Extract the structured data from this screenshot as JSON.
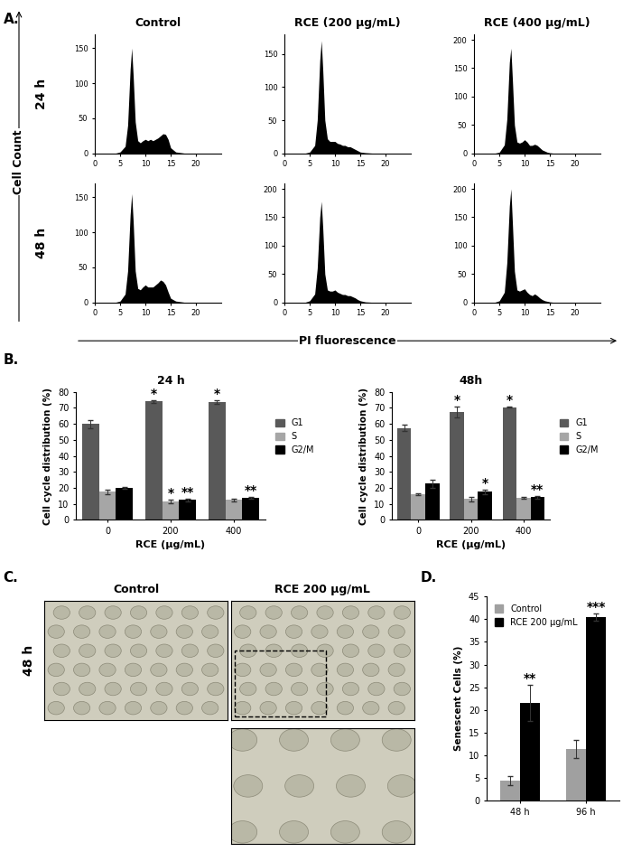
{
  "panel_labels": [
    "A.",
    "B.",
    "C.",
    "D."
  ],
  "figure_labels": {
    "y": "Cell Count",
    "x": "PI fluorescence"
  },
  "images": {
    "title_left": "Control",
    "title_right": "RCE 200 µg/mL",
    "row_label": "48 h"
  },
  "chart_data": [
    {
      "type": "area",
      "title": "Control",
      "row_label": "24 h",
      "color": "#000000",
      "x": [
        0,
        4,
        5,
        6,
        6.5,
        7,
        7.3,
        7.6,
        8,
        8.5,
        9,
        9.5,
        10,
        10.5,
        11,
        11.5,
        12,
        12.5,
        13,
        13.5,
        14,
        14.5,
        15,
        16,
        18,
        20,
        25
      ],
      "values": [
        0,
        0,
        2,
        10,
        40,
        120,
        150,
        110,
        45,
        18,
        15,
        18,
        20,
        18,
        20,
        18,
        20,
        22,
        25,
        28,
        27,
        20,
        8,
        2,
        0,
        0,
        0
      ],
      "xlim": [
        0,
        25
      ],
      "xticks": [
        0,
        5,
        10,
        15,
        20
      ],
      "ylim": [
        0,
        170
      ],
      "yticks": [
        0,
        50,
        100,
        150
      ]
    },
    {
      "type": "area",
      "title": "RCE (200 µg/mL)",
      "color": "#000000",
      "x": [
        0,
        4,
        5,
        6,
        6.5,
        7,
        7.3,
        7.6,
        8,
        8.5,
        9,
        9.5,
        10,
        10.5,
        11,
        11.5,
        12,
        12.5,
        13,
        13.5,
        14,
        14.5,
        15,
        16,
        18,
        20,
        25
      ],
      "values": [
        0,
        0,
        2,
        12,
        50,
        140,
        170,
        125,
        50,
        22,
        18,
        18,
        18,
        15,
        14,
        12,
        12,
        10,
        10,
        8,
        6,
        4,
        2,
        1,
        0,
        0,
        0
      ],
      "xlim": [
        0,
        25
      ],
      "xticks": [
        0,
        5,
        10,
        15,
        20
      ],
      "ylim": [
        0,
        180
      ],
      "yticks": [
        0,
        50,
        100,
        150
      ]
    },
    {
      "type": "area",
      "title": "RCE (400 µg/mL)",
      "color": "#000000",
      "x": [
        0,
        4,
        5,
        6,
        6.5,
        7,
        7.3,
        7.6,
        8,
        8.5,
        9,
        9.5,
        10,
        10.5,
        11,
        11.5,
        12,
        12.5,
        13,
        13.5,
        14,
        14.5,
        15,
        16,
        18,
        20,
        25
      ],
      "values": [
        0,
        0,
        2,
        15,
        60,
        160,
        185,
        130,
        50,
        20,
        18,
        20,
        24,
        20,
        14,
        14,
        16,
        14,
        10,
        6,
        4,
        2,
        1,
        0,
        0,
        0,
        0
      ],
      "xlim": [
        0,
        25
      ],
      "xticks": [
        0,
        5,
        10,
        15,
        20
      ],
      "ylim": [
        0,
        210
      ],
      "yticks": [
        0,
        50,
        100,
        150,
        200
      ]
    },
    {
      "type": "area",
      "row_label": "48 h",
      "color": "#000000",
      "x": [
        0,
        4,
        5,
        6,
        6.5,
        7,
        7.3,
        7.6,
        8,
        8.5,
        9,
        9.5,
        10,
        10.5,
        11,
        11.5,
        12,
        12.5,
        13,
        13.5,
        14,
        14.5,
        15,
        16,
        18,
        20,
        25
      ],
      "values": [
        0,
        0,
        2,
        12,
        45,
        125,
        155,
        115,
        45,
        20,
        18,
        22,
        25,
        22,
        22,
        22,
        25,
        28,
        32,
        30,
        25,
        15,
        6,
        2,
        0,
        0,
        0
      ],
      "xlim": [
        0,
        25
      ],
      "xticks": [
        0,
        5,
        10,
        15,
        20
      ],
      "ylim": [
        0,
        170
      ],
      "yticks": [
        0,
        50,
        100,
        150
      ]
    },
    {
      "type": "area",
      "color": "#000000",
      "x": [
        0,
        4,
        5,
        6,
        6.5,
        7,
        7.3,
        7.6,
        8,
        8.5,
        9,
        9.5,
        10,
        10.5,
        11,
        11.5,
        12,
        12.5,
        13,
        13.5,
        14,
        14.5,
        15,
        16,
        18,
        20,
        25
      ],
      "values": [
        0,
        0,
        3,
        15,
        60,
        150,
        178,
        130,
        50,
        22,
        20,
        20,
        22,
        18,
        16,
        14,
        14,
        12,
        12,
        10,
        8,
        5,
        3,
        1,
        0,
        0,
        0
      ],
      "xlim": [
        0,
        25
      ],
      "xticks": [
        0,
        5,
        10,
        15,
        20
      ],
      "ylim": [
        0,
        210
      ],
      "yticks": [
        0,
        50,
        100,
        150,
        200
      ]
    },
    {
      "type": "area",
      "color": "#000000",
      "x": [
        0,
        4,
        5,
        6,
        6.5,
        7,
        7.3,
        7.6,
        8,
        8.5,
        9,
        9.5,
        10,
        10.5,
        11,
        11.5,
        12,
        12.5,
        13,
        13.5,
        14,
        14.5,
        15,
        16,
        18,
        20,
        25
      ],
      "values": [
        0,
        0,
        3,
        18,
        70,
        170,
        200,
        140,
        55,
        22,
        20,
        22,
        24,
        18,
        14,
        12,
        15,
        12,
        8,
        5,
        3,
        2,
        1,
        0,
        0,
        0,
        0
      ],
      "xlim": [
        0,
        25
      ],
      "xticks": [
        0,
        5,
        10,
        15,
        20
      ],
      "ylim": [
        0,
        210
      ],
      "yticks": [
        0,
        50,
        100,
        150,
        200
      ]
    },
    {
      "type": "bar",
      "title": "24 h",
      "categories": [
        "0",
        "200",
        "400"
      ],
      "x_label": "RCE (µg/mL)",
      "y_label": "Cell cycle distribution (%)",
      "ylim": [
        0,
        80
      ],
      "yticks": [
        0,
        10,
        20,
        30,
        40,
        50,
        60,
        70,
        80
      ],
      "legend": "right",
      "series": [
        {
          "name": "G1",
          "color": "#595959",
          "values": [
            60,
            74,
            73.5
          ],
          "errors": [
            2.5,
            1.0,
            1.2
          ],
          "annotations": [
            null,
            "*",
            "*"
          ]
        },
        {
          "name": "S",
          "color": "#a6a6a6",
          "values": [
            17.5,
            11.5,
            12.5
          ],
          "errors": [
            1.5,
            1.0,
            0.8
          ],
          "annotations": [
            null,
            "*",
            null
          ]
        },
        {
          "name": "G2/M",
          "color": "#000000",
          "values": [
            20,
            12.5,
            13.5
          ],
          "errors": [
            0.5,
            0.8,
            0.5
          ],
          "annotations": [
            null,
            "**",
            "**"
          ]
        }
      ]
    },
    {
      "type": "bar",
      "title": "48h",
      "categories": [
        "0",
        "200",
        "400"
      ],
      "x_label": "RCE (µg/mL)",
      "y_label": "Cell cycle distribution (%)",
      "ylim": [
        0,
        80
      ],
      "yticks": [
        0,
        10,
        20,
        30,
        40,
        50,
        60,
        70,
        80
      ],
      "legend": "right",
      "series": [
        {
          "name": "G1",
          "color": "#595959",
          "values": [
            57.5,
            67.5,
            70.5
          ],
          "errors": [
            2.0,
            3.5,
            0.5
          ],
          "annotations": [
            null,
            "*",
            "*"
          ]
        },
        {
          "name": "S",
          "color": "#a6a6a6",
          "values": [
            16,
            13,
            13.5
          ],
          "errors": [
            0.5,
            1.5,
            0.5
          ],
          "annotations": [
            null,
            null,
            null
          ]
        },
        {
          "name": "G2/M",
          "color": "#000000",
          "values": [
            22.5,
            17.5,
            14
          ],
          "errors": [
            2.5,
            1.5,
            1.0
          ],
          "annotations": [
            null,
            "*",
            "**"
          ]
        }
      ]
    },
    {
      "type": "bar",
      "categories": [
        "48 h",
        "96 h"
      ],
      "y_label": "Senescent Cells (%)",
      "ylim": [
        0,
        45
      ],
      "yticks": [
        0,
        5,
        10,
        15,
        20,
        25,
        30,
        35,
        40,
        45
      ],
      "legend": "upper left",
      "series": [
        {
          "name": "Control",
          "color": "#a0a0a0",
          "values": [
            4.5,
            11.5
          ],
          "errors": [
            1.0,
            2.0
          ],
          "annotations": [
            null,
            null
          ]
        },
        {
          "name": "RCE 200 µg/mL",
          "color": "#000000",
          "values": [
            21.5,
            40.5
          ],
          "errors": [
            4.0,
            0.8
          ],
          "annotations": [
            "**",
            "***"
          ]
        }
      ]
    }
  ]
}
